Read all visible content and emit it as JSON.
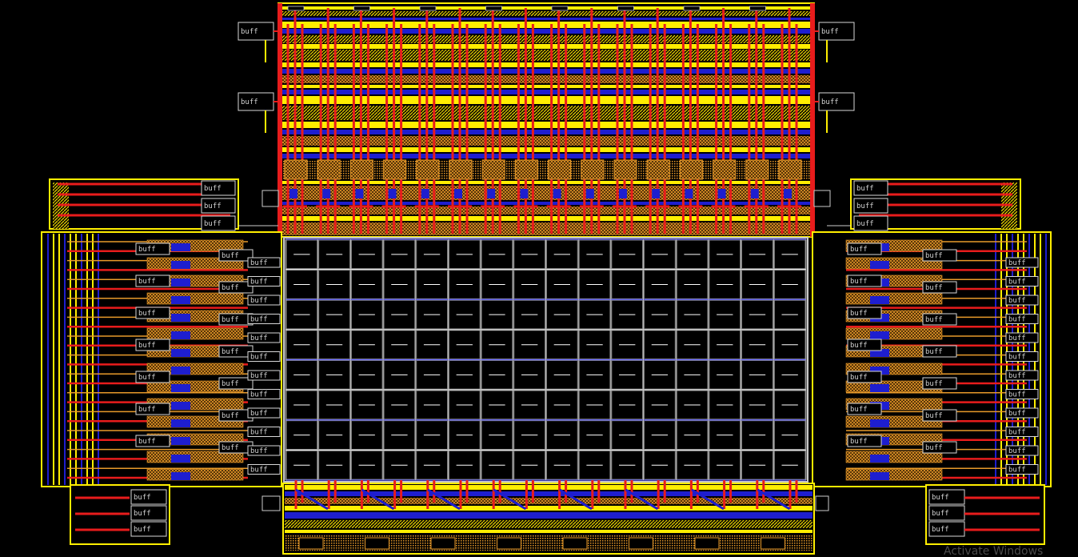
{
  "canvas": {
    "background": "#000000"
  },
  "colors": {
    "metal_red": "#e81c1c",
    "metal_yellow": "#ffee00",
    "metal_blue": "#1e1ecf",
    "orange_hatch": "#e89a2a",
    "grid_line": "#ffffff",
    "cell_dash": "#ffffff",
    "buf_box": "#d8d8d8",
    "magenta_pin": "#ff3cc8"
  },
  "buffer_label": "buff",
  "array": {
    "columns": 16,
    "rows": 8
  },
  "regions": {
    "top_column_driver": "column-driver-block",
    "bottom_sense_block": "sense-amp-block",
    "left_row_driver": "row-driver-left",
    "right_row_driver": "row-driver-right"
  },
  "watermark": "Activate Windows"
}
